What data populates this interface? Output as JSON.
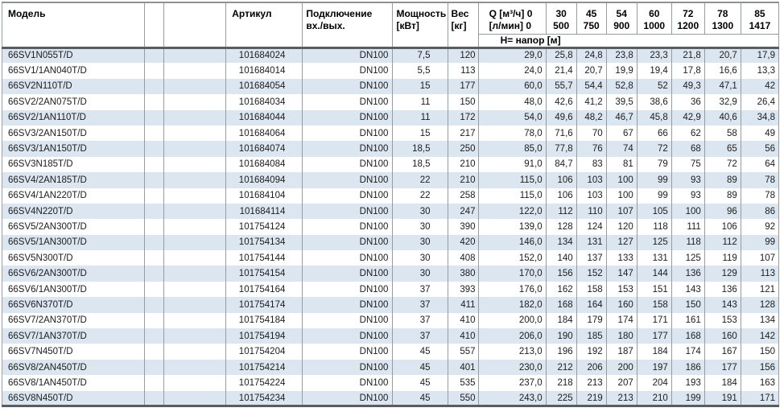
{
  "header": {
    "model": "Модель",
    "article": "Артикул",
    "connection_l1": "Подключение",
    "connection_l2": "вх./вых.",
    "power_l1": "Мощность",
    "power_l2": "[кВт]",
    "weight_l1": "Вес",
    "weight_l2": "[кг]",
    "q_l1": "Q [м³/ч] 0",
    "q_l2": "[л/мин] 0",
    "flow_columns": [
      [
        "30",
        "500"
      ],
      [
        "45",
        "750"
      ],
      [
        "54",
        "900"
      ],
      [
        "60",
        "1000"
      ],
      [
        "72",
        "1200"
      ],
      [
        "78",
        "1300"
      ],
      [
        "85",
        "1417"
      ]
    ],
    "head_row_label": "Н= напор [м]"
  },
  "colors": {
    "row_stripe": "#dce6f1",
    "thin_border": "#969ba1",
    "thick_border": "#5a5d60"
  },
  "rows": [
    {
      "model": "66SV1N055T/D",
      "article": "101684024",
      "connection": "DN100",
      "power": "7,5",
      "weight": "120",
      "values": [
        "29,0",
        "25,8",
        "24,8",
        "23,8",
        "23,3",
        "21,8",
        "20,7",
        "17,9"
      ]
    },
    {
      "model": "66SV1/1AN040T/D",
      "article": "101684014",
      "connection": "DN100",
      "power": "5,5",
      "weight": "113",
      "values": [
        "24,0",
        "21,4",
        "20,7",
        "19,9",
        "19,4",
        "17,8",
        "16,6",
        "13,3"
      ]
    },
    {
      "model": "66SV2N110T/D",
      "article": "101684054",
      "connection": "DN100",
      "power": "15",
      "weight": "177",
      "values": [
        "60,0",
        "55,7",
        "54,4",
        "52,8",
        "52",
        "49,3",
        "47,1",
        "42"
      ]
    },
    {
      "model": "66SV2/2AN075T/D",
      "article": "101684034",
      "connection": "DN100",
      "power": "11",
      "weight": "150",
      "values": [
        "48,0",
        "42,6",
        "41,2",
        "39,5",
        "38,6",
        "36",
        "32,9",
        "26,4"
      ]
    },
    {
      "model": "66SV2/1AN110T/D",
      "article": "101684044",
      "connection": "DN100",
      "power": "11",
      "weight": "172",
      "values": [
        "54,0",
        "49,6",
        "48,2",
        "46,7",
        "45,8",
        "42,9",
        "40,6",
        "34,8"
      ]
    },
    {
      "model": "66SV3/2AN150T/D",
      "article": "101684064",
      "connection": "DN100",
      "power": "15",
      "weight": "217",
      "values": [
        "78,0",
        "71,6",
        "70",
        "67",
        "66",
        "62",
        "58",
        "49"
      ]
    },
    {
      "model": "66SV3/1AN150T/D",
      "article": "101684074",
      "connection": "DN100",
      "power": "18,5",
      "weight": "250",
      "values": [
        "85,0",
        "77,8",
        "76",
        "74",
        "72",
        "68",
        "65",
        "56"
      ]
    },
    {
      "model": "66SV3N185T/D",
      "article": "101684084",
      "connection": "DN100",
      "power": "18,5",
      "weight": "210",
      "values": [
        "91,0",
        "84,7",
        "83",
        "81",
        "79",
        "75",
        "72",
        "64"
      ]
    },
    {
      "model": "66SV4/2AN185T/D",
      "article": "101684094",
      "connection": "DN100",
      "power": "22",
      "weight": "210",
      "values": [
        "115,0",
        "106",
        "103",
        "100",
        "99",
        "93",
        "89",
        "78"
      ]
    },
    {
      "model": "66SV4/1AN220T/D",
      "article": "101684104",
      "connection": "DN100",
      "power": "22",
      "weight": "258",
      "values": [
        "115,0",
        "106",
        "103",
        "100",
        "99",
        "93",
        "89",
        "78"
      ]
    },
    {
      "model": "66SV4N220T/D",
      "article": "101684114",
      "connection": "DN100",
      "power": "30",
      "weight": "247",
      "values": [
        "122,0",
        "112",
        "110",
        "107",
        "105",
        "100",
        "96",
        "86"
      ]
    },
    {
      "model": "66SV5/2AN300T/D",
      "article": "101754124",
      "connection": "DN100",
      "power": "30",
      "weight": "390",
      "values": [
        "139,0",
        "128",
        "124",
        "120",
        "118",
        "111",
        "106",
        "92"
      ]
    },
    {
      "model": "66SV5/1AN300T/D",
      "article": "101754134",
      "connection": "DN100",
      "power": "30",
      "weight": "420",
      "values": [
        "146,0",
        "134",
        "131",
        "127",
        "125",
        "118",
        "112",
        "99"
      ]
    },
    {
      "model": "66SV5N300T/D",
      "article": "101754144",
      "connection": "DN100",
      "power": "30",
      "weight": "408",
      "values": [
        "152,0",
        "140",
        "137",
        "133",
        "131",
        "125",
        "119",
        "107"
      ]
    },
    {
      "model": "66SV6/2AN300T/D",
      "article": "101754154",
      "connection": "DN100",
      "power": "30",
      "weight": "380",
      "values": [
        "170,0",
        "156",
        "152",
        "147",
        "144",
        "136",
        "129",
        "113"
      ]
    },
    {
      "model": "66SV6/1AN300T/D",
      "article": "101754164",
      "connection": "DN100",
      "power": "37",
      "weight": "393",
      "values": [
        "176,0",
        "162",
        "158",
        "153",
        "151",
        "143",
        "136",
        "121"
      ]
    },
    {
      "model": "66SV6N370T/D",
      "article": "101754174",
      "connection": "DN100",
      "power": "37",
      "weight": "411",
      "values": [
        "182,0",
        "168",
        "164",
        "160",
        "158",
        "150",
        "143",
        "128"
      ]
    },
    {
      "model": "66SV7/2AN370T/D",
      "article": "101754184",
      "connection": "DN100",
      "power": "37",
      "weight": "410",
      "values": [
        "200,0",
        "184",
        "179",
        "174",
        "171",
        "161",
        "153",
        "134"
      ]
    },
    {
      "model": "66SV7/1AN370T/D",
      "article": "101754194",
      "connection": "DN100",
      "power": "37",
      "weight": "410",
      "values": [
        "206,0",
        "190",
        "185",
        "180",
        "177",
        "168",
        "160",
        "142"
      ]
    },
    {
      "model": "66SV7N450T/D",
      "article": "101754204",
      "connection": "DN100",
      "power": "45",
      "weight": "557",
      "values": [
        "213,0",
        "196",
        "192",
        "187",
        "184",
        "174",
        "167",
        "150"
      ]
    },
    {
      "model": "66SV8/2AN450T/D",
      "article": "101754214",
      "connection": "DN100",
      "power": "45",
      "weight": "401",
      "values": [
        "230,0",
        "212",
        "206",
        "200",
        "197",
        "186",
        "177",
        "156"
      ]
    },
    {
      "model": "66SV8/1AN450T/D",
      "article": "101754224",
      "connection": "DN100",
      "power": "45",
      "weight": "535",
      "values": [
        "237,0",
        "218",
        "213",
        "207",
        "204",
        "193",
        "184",
        "163"
      ]
    },
    {
      "model": "66SV8N450T/D",
      "article": "101754234",
      "connection": "DN100",
      "power": "45",
      "weight": "550",
      "values": [
        "243,0",
        "225",
        "219",
        "213",
        "210",
        "199",
        "191",
        "171"
      ]
    }
  ]
}
